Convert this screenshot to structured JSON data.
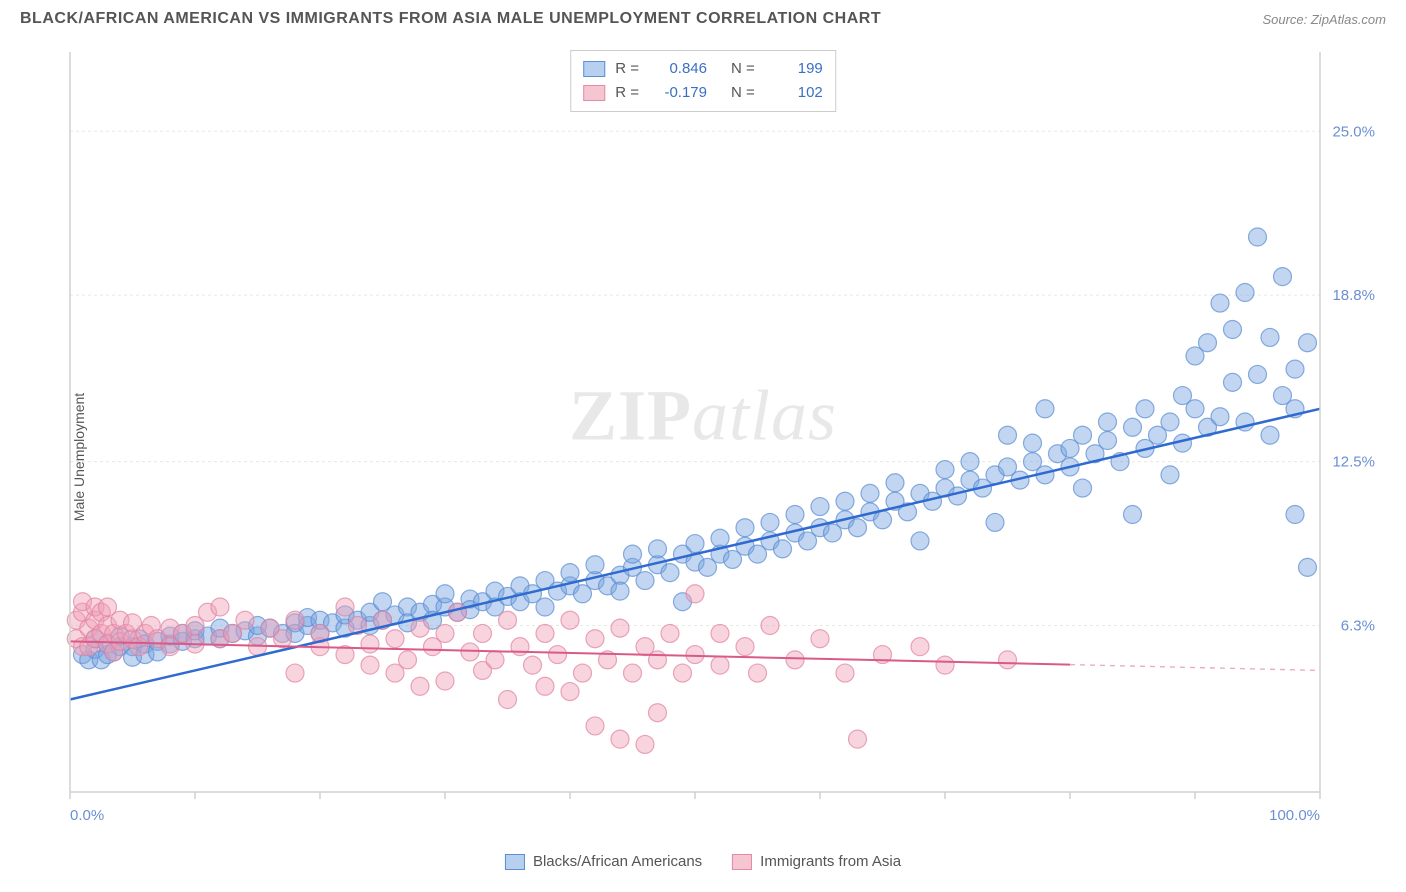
{
  "title": "BLACK/AFRICAN AMERICAN VS IMMIGRANTS FROM ASIA MALE UNEMPLOYMENT CORRELATION CHART",
  "source_prefix": "Source: ",
  "source_link": "ZipAtlas.com",
  "y_axis_label": "Male Unemployment",
  "watermark_zip": "ZIP",
  "watermark_atlas": "atlas",
  "chart": {
    "type": "scatter",
    "background_color": "#ffffff",
    "grid_color": "#e8e8e8",
    "axis_color": "#d0d0d0",
    "xlim": [
      0,
      100
    ],
    "ylim": [
      0,
      28
    ],
    "x_ticks_major": [
      0,
      10,
      20,
      30,
      40,
      50,
      60,
      70,
      80,
      90,
      100
    ],
    "x_tick_labels": {
      "0": "0.0%",
      "100": "100.0%"
    },
    "y_ticks": [
      6.3,
      12.5,
      18.8,
      25.0
    ],
    "y_tick_labels": [
      "6.3%",
      "12.5%",
      "18.8%",
      "25.0%"
    ],
    "legend_top": [
      {
        "swatch_fill": "#b8d0f0",
        "swatch_border": "#5b8fd6",
        "r_label": "R =",
        "r_val": "0.846",
        "n_label": "N =",
        "n_val": "199",
        "r_color": "#3a6fc4",
        "n_color": "#3a6fc4"
      },
      {
        "swatch_fill": "#f5c6d2",
        "swatch_border": "#e48aa4",
        "r_label": "R =",
        "r_val": "-0.179",
        "n_label": "N =",
        "n_val": "102",
        "r_color": "#3a6fc4",
        "n_color": "#3a6fc4"
      }
    ],
    "legend_bottom": [
      {
        "swatch_fill": "#b8d0f0",
        "swatch_border": "#5b8fd6",
        "label": "Blacks/African Americans"
      },
      {
        "swatch_fill": "#f5c6d2",
        "swatch_border": "#e48aa4",
        "label": "Immigrants from Asia"
      }
    ],
    "series": [
      {
        "name": "blue",
        "marker_fill": "rgba(120,165,225,0.45)",
        "marker_stroke": "rgba(90,140,210,0.7)",
        "marker_radius": 9,
        "line_color": "#2f6ad0",
        "line_width": 2.5,
        "trend": {
          "x1": 0,
          "y1": 3.5,
          "x2": 100,
          "y2": 14.5,
          "dashed_from": 100
        },
        "points": [
          [
            1,
            5.2
          ],
          [
            1.5,
            5.0
          ],
          [
            2,
            5.4
          ],
          [
            2,
            5.8
          ],
          [
            2.5,
            5.0
          ],
          [
            3,
            5.2
          ],
          [
            3,
            5.6
          ],
          [
            3.5,
            5.3
          ],
          [
            4,
            5.5
          ],
          [
            4,
            5.9
          ],
          [
            5,
            5.5
          ],
          [
            5,
            5.1
          ],
          [
            5.5,
            5.8
          ],
          [
            6,
            5.6
          ],
          [
            6,
            5.2
          ],
          [
            7,
            5.7
          ],
          [
            7,
            5.3
          ],
          [
            8,
            5.6
          ],
          [
            8,
            5.9
          ],
          [
            9,
            5.7
          ],
          [
            9,
            6.0
          ],
          [
            10,
            5.8
          ],
          [
            10,
            6.1
          ],
          [
            11,
            5.9
          ],
          [
            12,
            5.8
          ],
          [
            12,
            6.2
          ],
          [
            13,
            6.0
          ],
          [
            14,
            6.1
          ],
          [
            15,
            5.9
          ],
          [
            15,
            6.3
          ],
          [
            16,
            6.2
          ],
          [
            17,
            6.0
          ],
          [
            18,
            6.4
          ],
          [
            18,
            6.0
          ],
          [
            19,
            6.3
          ],
          [
            19,
            6.6
          ],
          [
            20,
            6.0
          ],
          [
            20,
            6.5
          ],
          [
            21,
            6.4
          ],
          [
            22,
            6.2
          ],
          [
            22,
            6.7
          ],
          [
            23,
            6.5
          ],
          [
            24,
            6.3
          ],
          [
            24,
            6.8
          ],
          [
            25,
            7.2
          ],
          [
            25,
            6.5
          ],
          [
            26,
            6.7
          ],
          [
            27,
            7.0
          ],
          [
            27,
            6.4
          ],
          [
            28,
            6.8
          ],
          [
            29,
            7.1
          ],
          [
            29,
            6.5
          ],
          [
            30,
            7.0
          ],
          [
            30,
            7.5
          ],
          [
            31,
            6.8
          ],
          [
            32,
            7.3
          ],
          [
            32,
            6.9
          ],
          [
            33,
            7.2
          ],
          [
            34,
            7.6
          ],
          [
            34,
            7.0
          ],
          [
            35,
            7.4
          ],
          [
            36,
            7.8
          ],
          [
            36,
            7.2
          ],
          [
            37,
            7.5
          ],
          [
            38,
            7.0
          ],
          [
            38,
            8.0
          ],
          [
            39,
            7.6
          ],
          [
            40,
            7.8
          ],
          [
            40,
            8.3
          ],
          [
            41,
            7.5
          ],
          [
            42,
            8.0
          ],
          [
            42,
            8.6
          ],
          [
            43,
            7.8
          ],
          [
            44,
            8.2
          ],
          [
            44,
            7.6
          ],
          [
            45,
            8.5
          ],
          [
            45,
            9.0
          ],
          [
            46,
            8.0
          ],
          [
            47,
            8.6
          ],
          [
            47,
            9.2
          ],
          [
            48,
            8.3
          ],
          [
            49,
            9.0
          ],
          [
            49,
            7.2
          ],
          [
            50,
            8.7
          ],
          [
            50,
            9.4
          ],
          [
            51,
            8.5
          ],
          [
            52,
            9.0
          ],
          [
            52,
            9.6
          ],
          [
            53,
            8.8
          ],
          [
            54,
            9.3
          ],
          [
            54,
            10.0
          ],
          [
            55,
            9.0
          ],
          [
            56,
            9.5
          ],
          [
            56,
            10.2
          ],
          [
            57,
            9.2
          ],
          [
            58,
            9.8
          ],
          [
            58,
            10.5
          ],
          [
            59,
            9.5
          ],
          [
            60,
            10.0
          ],
          [
            60,
            10.8
          ],
          [
            61,
            9.8
          ],
          [
            62,
            10.3
          ],
          [
            62,
            11.0
          ],
          [
            63,
            10.0
          ],
          [
            64,
            10.6
          ],
          [
            64,
            11.3
          ],
          [
            65,
            10.3
          ],
          [
            66,
            11.0
          ],
          [
            66,
            11.7
          ],
          [
            67,
            10.6
          ],
          [
            68,
            11.3
          ],
          [
            68,
            9.5
          ],
          [
            69,
            11.0
          ],
          [
            70,
            11.5
          ],
          [
            70,
            12.2
          ],
          [
            71,
            11.2
          ],
          [
            72,
            11.8
          ],
          [
            72,
            12.5
          ],
          [
            73,
            11.5
          ],
          [
            74,
            12.0
          ],
          [
            74,
            10.2
          ],
          [
            75,
            12.3
          ],
          [
            75,
            13.5
          ],
          [
            76,
            11.8
          ],
          [
            77,
            12.5
          ],
          [
            77,
            13.2
          ],
          [
            78,
            12.0
          ],
          [
            78,
            14.5
          ],
          [
            79,
            12.8
          ],
          [
            80,
            12.3
          ],
          [
            80,
            13.0
          ],
          [
            81,
            13.5
          ],
          [
            81,
            11.5
          ],
          [
            82,
            12.8
          ],
          [
            83,
            13.3
          ],
          [
            83,
            14.0
          ],
          [
            84,
            12.5
          ],
          [
            85,
            13.8
          ],
          [
            85,
            10.5
          ],
          [
            86,
            13.0
          ],
          [
            86,
            14.5
          ],
          [
            87,
            13.5
          ],
          [
            88,
            14.0
          ],
          [
            88,
            12.0
          ],
          [
            89,
            15.0
          ],
          [
            89,
            13.2
          ],
          [
            90,
            14.5
          ],
          [
            90,
            16.5
          ],
          [
            91,
            13.8
          ],
          [
            91,
            17.0
          ],
          [
            92,
            14.2
          ],
          [
            92,
            18.5
          ],
          [
            93,
            15.5
          ],
          [
            93,
            17.5
          ],
          [
            94,
            14.0
          ],
          [
            94,
            18.9
          ],
          [
            95,
            15.8
          ],
          [
            95,
            21.0
          ],
          [
            96,
            13.5
          ],
          [
            96,
            17.2
          ],
          [
            97,
            15.0
          ],
          [
            97,
            19.5
          ],
          [
            98,
            16.0
          ],
          [
            98,
            10.5
          ],
          [
            98,
            14.5
          ],
          [
            99,
            17.0
          ],
          [
            99,
            8.5
          ]
        ]
      },
      {
        "name": "pink",
        "marker_fill": "rgba(240,160,185,0.45)",
        "marker_stroke": "rgba(225,130,160,0.7)",
        "marker_radius": 9,
        "line_color": "#d95a88",
        "line_width": 2,
        "trend": {
          "x1": 0,
          "y1": 5.7,
          "x2": 100,
          "y2": 4.6,
          "dashed_from": 80
        },
        "points": [
          [
            0.5,
            6.5
          ],
          [
            0.5,
            5.8
          ],
          [
            1,
            6.8
          ],
          [
            1,
            5.5
          ],
          [
            1,
            7.2
          ],
          [
            1.5,
            6.2
          ],
          [
            1.5,
            5.5
          ],
          [
            2,
            6.5
          ],
          [
            2,
            7.0
          ],
          [
            2,
            5.8
          ],
          [
            2.5,
            6.0
          ],
          [
            2.5,
            6.8
          ],
          [
            3,
            5.6
          ],
          [
            3,
            6.3
          ],
          [
            3,
            7.0
          ],
          [
            3.5,
            6.0
          ],
          [
            3.5,
            5.3
          ],
          [
            4,
            6.5
          ],
          [
            4,
            5.7
          ],
          [
            4.5,
            6.0
          ],
          [
            5,
            5.8
          ],
          [
            5,
            6.4
          ],
          [
            5.5,
            5.5
          ],
          [
            6,
            6.0
          ],
          [
            6.5,
            6.3
          ],
          [
            7,
            5.8
          ],
          [
            8,
            6.2
          ],
          [
            8,
            5.5
          ],
          [
            9,
            6.0
          ],
          [
            10,
            5.6
          ],
          [
            10,
            6.3
          ],
          [
            11,
            6.8
          ],
          [
            12,
            5.8
          ],
          [
            12,
            7.0
          ],
          [
            13,
            6.0
          ],
          [
            14,
            6.5
          ],
          [
            15,
            5.5
          ],
          [
            16,
            6.2
          ],
          [
            17,
            5.8
          ],
          [
            18,
            6.5
          ],
          [
            18,
            4.5
          ],
          [
            20,
            5.5
          ],
          [
            20,
            6.0
          ],
          [
            22,
            5.2
          ],
          [
            22,
            7.0
          ],
          [
            23,
            6.3
          ],
          [
            24,
            4.8
          ],
          [
            24,
            5.6
          ],
          [
            25,
            6.5
          ],
          [
            26,
            4.5
          ],
          [
            26,
            5.8
          ],
          [
            27,
            5.0
          ],
          [
            28,
            6.2
          ],
          [
            28,
            4.0
          ],
          [
            29,
            5.5
          ],
          [
            30,
            6.0
          ],
          [
            30,
            4.2
          ],
          [
            31,
            6.8
          ],
          [
            32,
            5.3
          ],
          [
            33,
            4.6
          ],
          [
            33,
            6.0
          ],
          [
            34,
            5.0
          ],
          [
            35,
            6.5
          ],
          [
            35,
            3.5
          ],
          [
            36,
            5.5
          ],
          [
            37,
            4.8
          ],
          [
            38,
            6.0
          ],
          [
            38,
            4.0
          ],
          [
            39,
            5.2
          ],
          [
            40,
            6.5
          ],
          [
            40,
            3.8
          ],
          [
            41,
            4.5
          ],
          [
            42,
            5.8
          ],
          [
            42,
            2.5
          ],
          [
            43,
            5.0
          ],
          [
            44,
            6.2
          ],
          [
            44,
            2.0
          ],
          [
            45,
            4.5
          ],
          [
            46,
            5.5
          ],
          [
            46,
            1.8
          ],
          [
            47,
            5.0
          ],
          [
            47,
            3.0
          ],
          [
            48,
            6.0
          ],
          [
            49,
            4.5
          ],
          [
            50,
            5.2
          ],
          [
            50,
            7.5
          ],
          [
            52,
            4.8
          ],
          [
            52,
            6.0
          ],
          [
            54,
            5.5
          ],
          [
            55,
            4.5
          ],
          [
            56,
            6.3
          ],
          [
            58,
            5.0
          ],
          [
            60,
            5.8
          ],
          [
            62,
            4.5
          ],
          [
            63,
            2.0
          ],
          [
            65,
            5.2
          ],
          [
            68,
            5.5
          ],
          [
            70,
            4.8
          ],
          [
            75,
            5.0
          ]
        ]
      }
    ]
  }
}
